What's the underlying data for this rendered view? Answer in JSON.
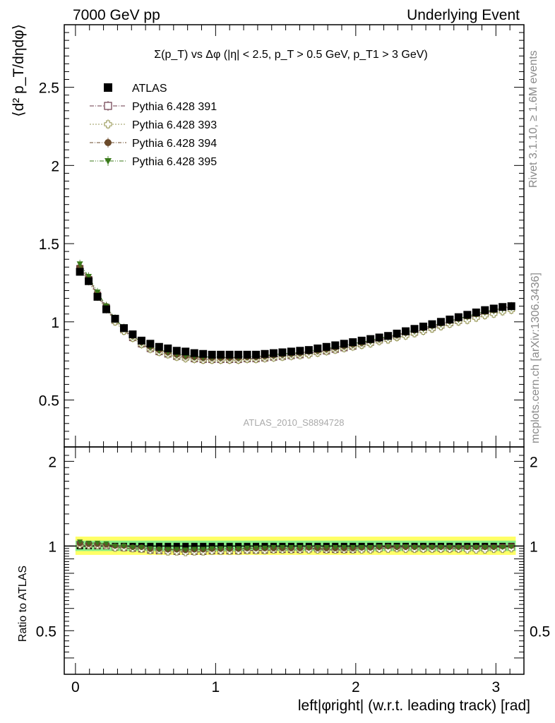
{
  "header": {
    "left": "7000 GeV pp",
    "right": "Underlying Event"
  },
  "side_labels": {
    "rivet": "Rivet 3.1.10, ≥ 1.6M events",
    "mcplots": "mcplots.cern.ch [arXiv:1306.3436]"
  },
  "colors": {
    "atlas": "#000000",
    "p391": "#6b3a4a",
    "p393": "#9a9a5a",
    "p394": "#6b4a2a",
    "p395": "#3a7a1a",
    "band_outer": "#ffff66",
    "band_inner": "#88ee88"
  },
  "chart_data": [
    {
      "type": "scatter",
      "title": "Σ(p_T) vs Δφ (|η| < 2.5, p_T > 0.5 GeV, p_T1 > 3 GeV)",
      "ylabel": "⟨d² p_T/dηdφ⟩",
      "watermark": "ATLAS_2010_S8894728",
      "xlim": [
        -0.08,
        3.2
      ],
      "ylim": [
        0.2,
        2.9
      ],
      "yticks": [
        0.5,
        1,
        1.5,
        2,
        2.5
      ],
      "ytick_labels": [
        "0.5",
        "1",
        "1.5",
        "2",
        "2.5"
      ],
      "legend": "top-left",
      "x": [
        0.0314,
        0.0942,
        0.157,
        0.2199,
        0.2827,
        0.3456,
        0.4084,
        0.4712,
        0.5341,
        0.5969,
        0.6597,
        0.7226,
        0.7854,
        0.8482,
        0.9111,
        0.9739,
        1.0367,
        1.0996,
        1.1624,
        1.2252,
        1.2881,
        1.3509,
        1.4137,
        1.4766,
        1.5394,
        1.6022,
        1.6651,
        1.7279,
        1.7907,
        1.8536,
        1.9164,
        1.9792,
        2.0421,
        2.1049,
        2.1677,
        2.2306,
        2.2934,
        2.3562,
        2.4191,
        2.4819,
        2.5447,
        2.6076,
        2.6704,
        2.7332,
        2.7961,
        2.8589,
        2.9217,
        2.9846,
        3.0474,
        3.1102
      ],
      "series": [
        {
          "name": "ATLAS",
          "marker": "filled-square",
          "values": [
            1.32,
            1.26,
            1.16,
            1.08,
            1.02,
            0.96,
            0.92,
            0.88,
            0.86,
            0.84,
            0.83,
            0.815,
            0.81,
            0.8,
            0.795,
            0.79,
            0.79,
            0.79,
            0.79,
            0.79,
            0.79,
            0.795,
            0.8,
            0.805,
            0.81,
            0.815,
            0.82,
            0.83,
            0.84,
            0.85,
            0.86,
            0.87,
            0.88,
            0.89,
            0.9,
            0.91,
            0.925,
            0.94,
            0.955,
            0.97,
            0.985,
            1.0,
            1.015,
            1.03,
            1.045,
            1.06,
            1.075,
            1.085,
            1.095,
            1.1
          ]
        },
        {
          "name": "Pythia 6.428 391",
          "marker": "open-square",
          "values": [
            1.34,
            1.27,
            1.17,
            1.09,
            1.01,
            0.95,
            0.9,
            0.86,
            0.83,
            0.81,
            0.795,
            0.78,
            0.775,
            0.765,
            0.76,
            0.76,
            0.76,
            0.76,
            0.76,
            0.765,
            0.765,
            0.77,
            0.775,
            0.78,
            0.785,
            0.79,
            0.8,
            0.81,
            0.815,
            0.825,
            0.835,
            0.845,
            0.86,
            0.87,
            0.885,
            0.895,
            0.91,
            0.925,
            0.935,
            0.95,
            0.965,
            0.98,
            0.995,
            1.01,
            1.025,
            1.04,
            1.055,
            1.07,
            1.085,
            1.095
          ]
        },
        {
          "name": "Pythia 6.428 393",
          "marker": "open-cross",
          "values": [
            1.33,
            1.26,
            1.16,
            1.08,
            1.0,
            0.94,
            0.895,
            0.855,
            0.825,
            0.805,
            0.79,
            0.775,
            0.765,
            0.76,
            0.755,
            0.755,
            0.755,
            0.755,
            0.755,
            0.76,
            0.76,
            0.765,
            0.77,
            0.775,
            0.78,
            0.785,
            0.79,
            0.8,
            0.81,
            0.82,
            0.83,
            0.84,
            0.85,
            0.86,
            0.875,
            0.885,
            0.9,
            0.91,
            0.925,
            0.94,
            0.955,
            0.97,
            0.985,
            1.0,
            1.01,
            1.025,
            1.04,
            1.05,
            1.065,
            1.075
          ]
        },
        {
          "name": "Pythia 6.428 394",
          "marker": "filled-circle",
          "values": [
            1.35,
            1.28,
            1.18,
            1.1,
            1.02,
            0.96,
            0.91,
            0.87,
            0.84,
            0.82,
            0.805,
            0.79,
            0.78,
            0.775,
            0.77,
            0.77,
            0.77,
            0.77,
            0.77,
            0.775,
            0.775,
            0.78,
            0.785,
            0.79,
            0.795,
            0.8,
            0.81,
            0.815,
            0.825,
            0.835,
            0.845,
            0.855,
            0.865,
            0.88,
            0.89,
            0.905,
            0.915,
            0.93,
            0.945,
            0.96,
            0.975,
            0.99,
            1.005,
            1.02,
            1.035,
            1.05,
            1.065,
            1.075,
            1.09,
            1.1
          ]
        },
        {
          "name": "Pythia 6.428 395",
          "marker": "filled-triangle-down",
          "values": [
            1.37,
            1.29,
            1.19,
            1.1,
            1.02,
            0.96,
            0.91,
            0.87,
            0.84,
            0.82,
            0.81,
            0.795,
            0.785,
            0.78,
            0.775,
            0.775,
            0.775,
            0.775,
            0.775,
            0.78,
            0.78,
            0.785,
            0.79,
            0.795,
            0.8,
            0.805,
            0.815,
            0.82,
            0.83,
            0.84,
            0.85,
            0.86,
            0.87,
            0.88,
            0.895,
            0.905,
            0.92,
            0.935,
            0.945,
            0.96,
            0.975,
            0.99,
            1.005,
            1.02,
            1.035,
            1.05,
            1.065,
            1.075,
            1.085,
            1.095
          ]
        }
      ]
    },
    {
      "type": "scatter",
      "ylabel": "Ratio to ATLAS",
      "xlabel": "left|φright| (w.r.t. leading track) [rad]",
      "xlim": [
        -0.08,
        3.2
      ],
      "ylim": [
        0.35,
        2.25
      ],
      "xticks": [
        0,
        1,
        2,
        3
      ],
      "xtick_labels": [
        "0",
        "1",
        "2",
        "3"
      ],
      "yticks": [
        0.5,
        1,
        2
      ],
      "ytick_labels": [
        "0.5",
        "1",
        "2"
      ],
      "band_outer": [
        0.93,
        1.08
      ],
      "band_inner": [
        0.96,
        1.045
      ],
      "series": [
        {
          "name": "Pythia 6.428 391",
          "values": [
            1.015,
            1.01,
            1.005,
            1.0,
            0.99,
            0.985,
            0.98,
            0.975,
            0.965,
            0.96,
            0.96,
            0.955,
            0.955,
            0.955,
            0.955,
            0.96,
            0.96,
            0.96,
            0.96,
            0.965,
            0.965,
            0.965,
            0.97,
            0.97,
            0.97,
            0.97,
            0.975,
            0.975,
            0.97,
            0.97,
            0.97,
            0.97,
            0.975,
            0.975,
            0.98,
            0.985,
            0.985,
            0.985,
            0.98,
            0.98,
            0.98,
            0.98,
            0.98,
            0.98,
            0.98,
            0.98,
            0.98,
            0.985,
            0.99,
            0.995
          ]
        },
        {
          "name": "Pythia 6.428 393",
          "values": [
            1.005,
            1.0,
            1.0,
            1.0,
            0.98,
            0.98,
            0.975,
            0.97,
            0.96,
            0.96,
            0.95,
            0.95,
            0.945,
            0.95,
            0.95,
            0.955,
            0.955,
            0.955,
            0.955,
            0.96,
            0.96,
            0.96,
            0.965,
            0.965,
            0.965,
            0.965,
            0.965,
            0.965,
            0.965,
            0.965,
            0.965,
            0.965,
            0.965,
            0.965,
            0.97,
            0.97,
            0.975,
            0.97,
            0.97,
            0.97,
            0.97,
            0.97,
            0.97,
            0.97,
            0.965,
            0.965,
            0.965,
            0.97,
            0.97,
            0.975
          ]
        },
        {
          "name": "Pythia 6.428 394",
          "values": [
            1.02,
            1.015,
            1.015,
            1.01,
            1.0,
            1.0,
            0.99,
            0.99,
            0.975,
            0.975,
            0.97,
            0.97,
            0.965,
            0.97,
            0.97,
            0.975,
            0.975,
            0.975,
            0.975,
            0.98,
            0.98,
            0.98,
            0.98,
            0.98,
            0.98,
            0.98,
            0.985,
            0.98,
            0.98,
            0.98,
            0.98,
            0.98,
            0.985,
            0.985,
            0.99,
            0.995,
            0.99,
            0.99,
            0.99,
            0.99,
            0.99,
            0.99,
            0.99,
            0.99,
            0.99,
            0.99,
            0.99,
            0.99,
            0.995,
            1.0
          ]
        },
        {
          "name": "Pythia 6.428 395",
          "values": [
            1.035,
            1.025,
            1.025,
            1.02,
            1.0,
            1.0,
            0.99,
            0.99,
            0.98,
            0.975,
            0.975,
            0.975,
            0.97,
            0.975,
            0.975,
            0.98,
            0.98,
            0.98,
            0.98,
            0.985,
            0.985,
            0.985,
            0.99,
            0.99,
            0.99,
            0.99,
            0.99,
            0.99,
            0.99,
            0.99,
            0.99,
            0.99,
            0.99,
            0.99,
            0.995,
            0.995,
            0.995,
            0.995,
            0.99,
            0.99,
            0.99,
            0.99,
            0.99,
            0.99,
            0.99,
            0.99,
            0.99,
            0.99,
            0.99,
            0.995
          ]
        }
      ]
    }
  ]
}
